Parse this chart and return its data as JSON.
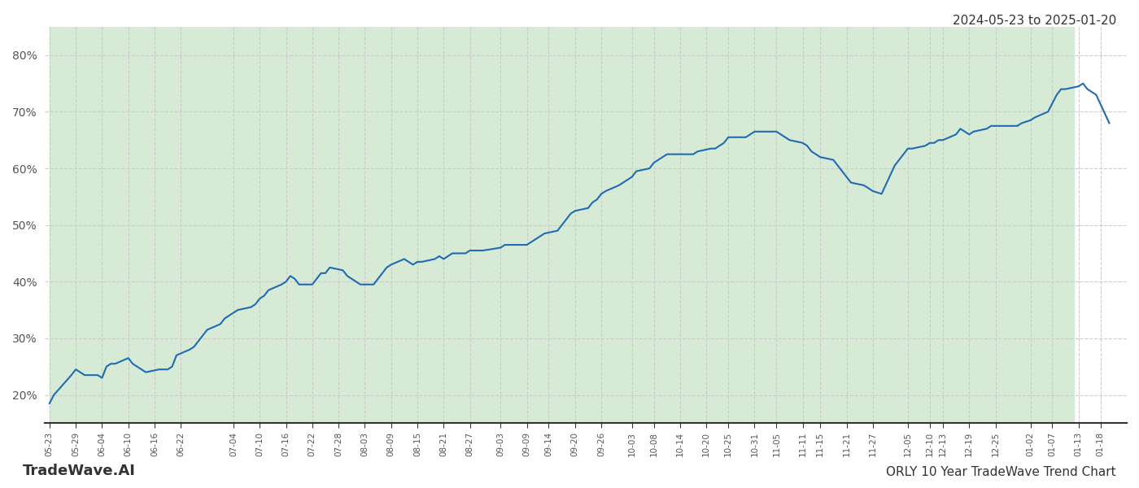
{
  "title_top_right": "2024-05-23 to 2025-01-20",
  "title_bottom_left": "TradeWave.AI",
  "title_bottom_right": "ORLY 10 Year TradeWave Trend Chart",
  "line_color": "#1f6cb0",
  "line_width": 1.5,
  "bg_color": "#ffffff",
  "plot_bg_color": "#ffffff",
  "shaded_region_color": "#d6ead6",
  "shaded_start": "2024-05-23",
  "shaded_end": "2025-01-12",
  "grid_color": "#cccccc",
  "grid_style": "--",
  "ylim": [
    15,
    85
  ],
  "yticks": [
    20,
    30,
    40,
    50,
    60,
    70,
    80
  ],
  "ytick_labels": [
    "20%",
    "30%",
    "40%",
    "50%",
    "60%",
    "70%",
    "80%"
  ],
  "dates": [
    "2024-05-23",
    "2024-05-24",
    "2024-05-28",
    "2024-05-29",
    "2024-05-30",
    "2024-05-31",
    "2024-06-03",
    "2024-06-04",
    "2024-06-05",
    "2024-06-06",
    "2024-06-07",
    "2024-06-10",
    "2024-06-11",
    "2024-06-12",
    "2024-06-13",
    "2024-06-14",
    "2024-06-17",
    "2024-06-18",
    "2024-06-19",
    "2024-06-20",
    "2024-06-21",
    "2024-06-24",
    "2024-06-25",
    "2024-06-26",
    "2024-06-27",
    "2024-06-28",
    "2024-07-01",
    "2024-07-02",
    "2024-07-03",
    "2024-07-05",
    "2024-07-08",
    "2024-07-09",
    "2024-07-10",
    "2024-07-11",
    "2024-07-12",
    "2024-07-15",
    "2024-07-16",
    "2024-07-17",
    "2024-07-18",
    "2024-07-19",
    "2024-07-22",
    "2024-07-23",
    "2024-07-24",
    "2024-07-25",
    "2024-07-26",
    "2024-07-29",
    "2024-07-30",
    "2024-07-31",
    "2024-08-01",
    "2024-08-02",
    "2024-08-05",
    "2024-08-06",
    "2024-08-07",
    "2024-08-08",
    "2024-08-09",
    "2024-08-12",
    "2024-08-13",
    "2024-08-14",
    "2024-08-15",
    "2024-08-16",
    "2024-08-19",
    "2024-08-20",
    "2024-08-21",
    "2024-08-22",
    "2024-08-23",
    "2024-08-26",
    "2024-08-27",
    "2024-08-28",
    "2024-08-29",
    "2024-08-30",
    "2024-09-03",
    "2024-09-04",
    "2024-09-05",
    "2024-09-06",
    "2024-09-09",
    "2024-09-10",
    "2024-09-11",
    "2024-09-12",
    "2024-09-13",
    "2024-09-16",
    "2024-09-17",
    "2024-09-18",
    "2024-09-19",
    "2024-09-20",
    "2024-09-23",
    "2024-09-24",
    "2024-09-25",
    "2024-09-26",
    "2024-09-27",
    "2024-09-30",
    "2024-10-01",
    "2024-10-02",
    "2024-10-03",
    "2024-10-04",
    "2024-10-07",
    "2024-10-08",
    "2024-10-09",
    "2024-10-10",
    "2024-10-11",
    "2024-10-14",
    "2024-10-15",
    "2024-10-16",
    "2024-10-17",
    "2024-10-18",
    "2024-10-21",
    "2024-10-22",
    "2024-10-23",
    "2024-10-24",
    "2024-10-25",
    "2024-10-28",
    "2024-10-29",
    "2024-10-30",
    "2024-10-31",
    "2024-11-01",
    "2024-11-04",
    "2024-11-05",
    "2024-11-06",
    "2024-11-07",
    "2024-11-08",
    "2024-11-11",
    "2024-11-12",
    "2024-11-13",
    "2024-11-14",
    "2024-11-15",
    "2024-11-18",
    "2024-11-19",
    "2024-11-20",
    "2024-11-21",
    "2024-11-22",
    "2024-11-25",
    "2024-11-26",
    "2024-11-27",
    "2024-11-29",
    "2024-12-02",
    "2024-12-03",
    "2024-12-04",
    "2024-12-05",
    "2024-12-06",
    "2024-12-09",
    "2024-12-10",
    "2024-12-11",
    "2024-12-12",
    "2024-12-13",
    "2024-12-16",
    "2024-12-17",
    "2024-12-18",
    "2024-12-19",
    "2024-12-20",
    "2024-12-23",
    "2024-12-24",
    "2024-12-26",
    "2024-12-27",
    "2024-12-30",
    "2024-12-31",
    "2025-01-02",
    "2025-01-03",
    "2025-01-06",
    "2025-01-07",
    "2025-01-08",
    "2025-01-09",
    "2025-01-10",
    "2025-01-13",
    "2025-01-14",
    "2025-01-15",
    "2025-01-16",
    "2025-01-17",
    "2025-01-20"
  ],
  "values": [
    18.5,
    20.0,
    23.5,
    24.5,
    24.0,
    23.5,
    23.5,
    23.0,
    25.0,
    25.5,
    25.5,
    26.5,
    25.5,
    25.0,
    24.5,
    24.0,
    24.5,
    24.5,
    24.5,
    25.0,
    27.0,
    28.0,
    28.5,
    29.5,
    30.5,
    31.5,
    32.5,
    33.5,
    34.0,
    35.0,
    35.5,
    36.0,
    37.0,
    37.5,
    38.5,
    39.5,
    40.0,
    41.0,
    40.5,
    39.5,
    39.5,
    40.5,
    41.5,
    41.5,
    42.5,
    42.0,
    41.0,
    40.5,
    40.0,
    39.5,
    39.5,
    40.5,
    41.5,
    42.5,
    43.0,
    44.0,
    43.5,
    43.0,
    43.5,
    43.5,
    44.0,
    44.5,
    44.0,
    44.5,
    45.0,
    45.0,
    45.5,
    45.5,
    45.5,
    45.5,
    46.0,
    46.5,
    46.5,
    46.5,
    46.5,
    47.0,
    47.5,
    48.0,
    48.5,
    49.0,
    50.0,
    51.0,
    52.0,
    52.5,
    53.0,
    54.0,
    54.5,
    55.5,
    56.0,
    57.0,
    57.5,
    58.0,
    58.5,
    59.5,
    60.0,
    61.0,
    61.5,
    62.0,
    62.5,
    62.5,
    62.5,
    62.5,
    62.5,
    63.0,
    63.5,
    63.5,
    64.0,
    64.5,
    65.5,
    65.5,
    65.5,
    66.0,
    66.5,
    66.5,
    66.5,
    66.5,
    66.0,
    65.5,
    65.0,
    64.5,
    64.0,
    63.0,
    62.5,
    62.0,
    61.5,
    60.5,
    59.5,
    58.5,
    57.5,
    57.0,
    56.5,
    56.0,
    55.5,
    60.5,
    61.5,
    62.5,
    63.5,
    63.5,
    64.0,
    64.5,
    64.5,
    65.0,
    65.0,
    66.0,
    67.0,
    66.5,
    66.0,
    66.5,
    67.0,
    67.5,
    67.5,
    67.5,
    67.5,
    68.0,
    68.5,
    69.0,
    70.0,
    71.5,
    73.0,
    74.0,
    74.0,
    74.5,
    75.0,
    74.0,
    73.5,
    73.0,
    68.0
  ],
  "xlabel_dates": [
    "05-23",
    "05-29",
    "06-04",
    "06-10",
    "06-16",
    "06-22",
    "07-04",
    "07-10",
    "07-16",
    "07-22",
    "07-28",
    "08-03",
    "08-09",
    "08-15",
    "08-21",
    "08-27",
    "09-03",
    "09-09",
    "09-14",
    "09-20",
    "09-26",
    "10-03",
    "10-08",
    "10-14",
    "10-20",
    "10-25",
    "10-31",
    "11-05",
    "11-11",
    "11-15",
    "11-21",
    "11-27",
    "12-05",
    "12-10",
    "12-13",
    "12-19",
    "12-25",
    "01-02",
    "01-07",
    "01-13",
    "01-18"
  ]
}
